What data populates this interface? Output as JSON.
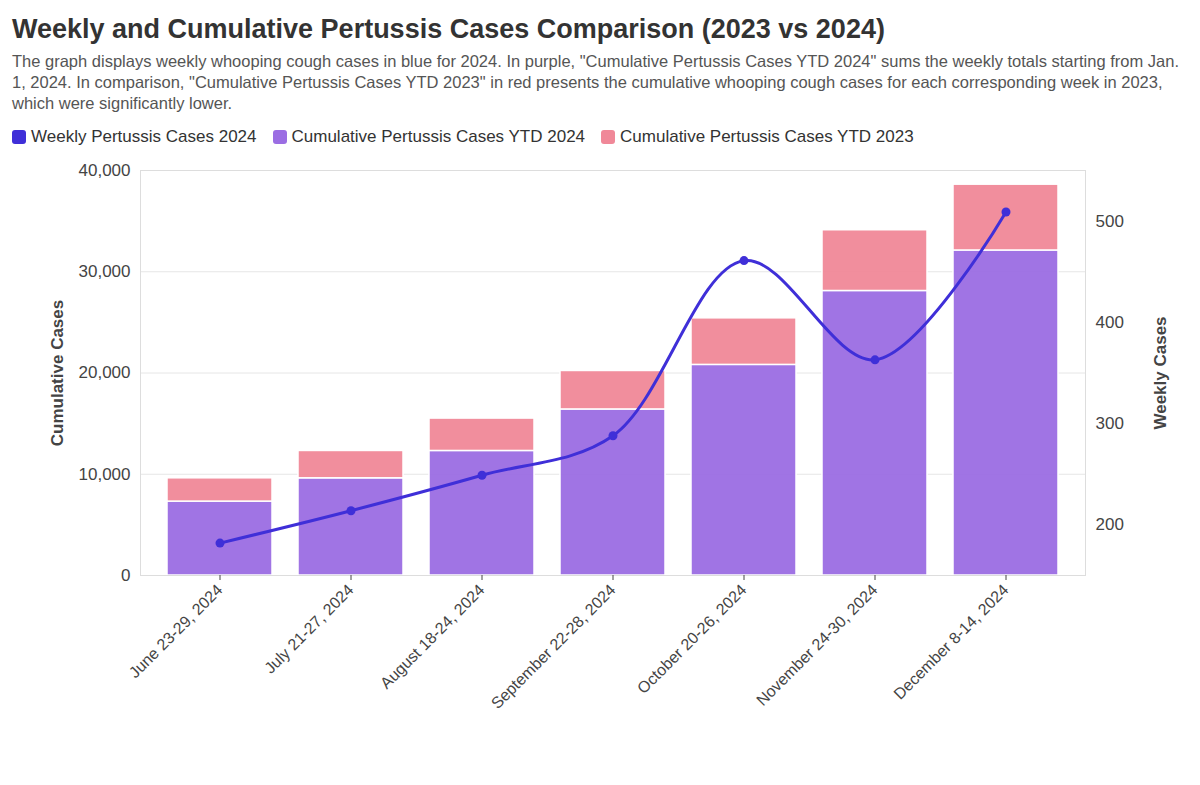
{
  "chart_data": {
    "type": "bar",
    "title": "Weekly and Cumulative Pertussis Cases Comparison (2023 vs 2024)",
    "subtitle": "The graph displays weekly whooping cough cases in blue for 2024. In purple, \"Cumulative Pertussis Cases YTD 2024\" sums the weekly totals starting from Jan. 1, 2024. In comparison, \"Cumulative Pertussis Cases YTD 2023\" in red presents the cumulative whooping cough cases for each corresponding week in 2023, which were significantly lower.",
    "categories": [
      "June 23-29, 2024",
      "July 21-27, 2024",
      "August 18-24, 2024",
      "September 22-28, 2024",
      "October 20-26, 2024",
      "November 24-30, 2024",
      "December 8-14, 2024"
    ],
    "series": [
      {
        "name": "Weekly Pertussis Cases 2024",
        "type": "line",
        "axis": "y2",
        "marker": "circle",
        "color": "#3f2fd8",
        "values": [
          182,
          214,
          249,
          288,
          461,
          363,
          509
        ]
      },
      {
        "name": "Cumulative Pertussis Cases YTD 2024",
        "type": "bar",
        "color": "#9b6de3",
        "values": [
          7300,
          9600,
          12300,
          16400,
          20800,
          28100,
          32100
        ]
      },
      {
        "name": "Cumulative Pertussis Cases YTD 2023",
        "type": "bar",
        "color": "#f08898",
        "values": [
          2300,
          2700,
          3200,
          3800,
          4600,
          6000,
          6500
        ]
      }
    ],
    "stacked": true,
    "ylabel": "Cumulative Cases",
    "y2label": "Weekly Cases",
    "ylim": [
      0,
      40000
    ],
    "yticks": [
      0,
      {
        "value": 10000,
        "label": "10,000"
      },
      {
        "value": 20000,
        "label": "20,000"
      },
      {
        "value": 30000,
        "label": "30,000"
      },
      {
        "value": 40000,
        "label": "40,000"
      }
    ],
    "y2lim": [
      150,
      550
    ],
    "y2ticks": [
      200,
      300,
      400,
      500
    ],
    "grid": true,
    "legend": "top-left"
  }
}
